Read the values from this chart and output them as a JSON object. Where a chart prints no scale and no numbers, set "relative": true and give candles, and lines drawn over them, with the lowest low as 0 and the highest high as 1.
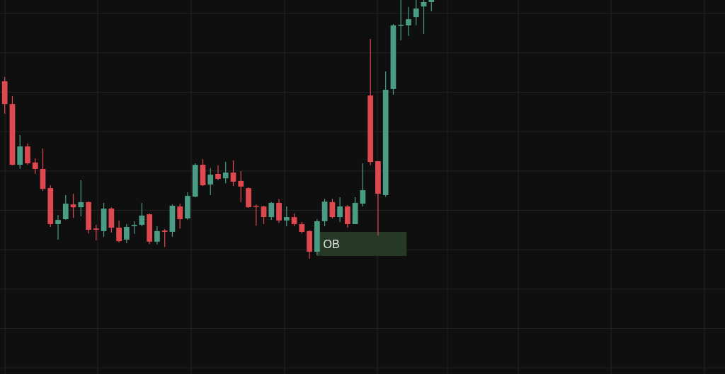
{
  "chart_data": {
    "type": "candlestick",
    "relative": true,
    "categories": [
      null,
      null,
      null,
      null,
      null,
      null,
      null,
      null,
      null,
      null,
      null,
      null,
      null,
      null,
      null,
      null,
      null,
      null,
      null,
      null,
      null,
      null,
      null,
      null,
      null,
      null,
      null,
      null,
      null,
      null,
      null,
      null,
      null,
      null,
      null,
      null,
      null,
      null,
      null,
      null,
      null,
      null,
      null,
      null,
      null,
      null,
      null,
      null,
      null,
      null,
      null,
      null,
      null,
      null,
      null,
      null,
      null
    ],
    "ohlc": [
      [
        0.686,
        0.702,
        0.56,
        0.598
      ],
      [
        0.598,
        0.628,
        0.361,
        0.363
      ],
      [
        0.363,
        0.478,
        0.347,
        0.434
      ],
      [
        0.434,
        0.445,
        0.363,
        0.369
      ],
      [
        0.372,
        0.388,
        0.328,
        0.347
      ],
      [
        0.347,
        0.426,
        0.262,
        0.27
      ],
      [
        0.273,
        0.284,
        0.123,
        0.134
      ],
      [
        0.134,
        0.169,
        0.074,
        0.15
      ],
      [
        0.153,
        0.246,
        0.15,
        0.213
      ],
      [
        0.21,
        0.251,
        0.158,
        0.199
      ],
      [
        0.199,
        0.303,
        0.164,
        0.219
      ],
      [
        0.219,
        0.221,
        0.098,
        0.112
      ],
      [
        0.117,
        0.131,
        0.071,
        0.112
      ],
      [
        0.107,
        0.216,
        0.085,
        0.194
      ],
      [
        0.194,
        0.199,
        0.101,
        0.12
      ],
      [
        0.12,
        0.148,
        0.063,
        0.068
      ],
      [
        0.074,
        0.134,
        0.06,
        0.123
      ],
      [
        0.126,
        0.145,
        0.096,
        0.131
      ],
      [
        0.131,
        0.216,
        0.126,
        0.167
      ],
      [
        0.172,
        0.175,
        0.057,
        0.066
      ],
      [
        0.066,
        0.126,
        0.055,
        0.107
      ],
      [
        0.109,
        0.115,
        0.046,
        0.104
      ],
      [
        0.104,
        0.21,
        0.085,
        0.205
      ],
      [
        0.202,
        0.213,
        0.117,
        0.153
      ],
      [
        0.156,
        0.257,
        0.15,
        0.243
      ],
      [
        0.24,
        0.369,
        0.238,
        0.363
      ],
      [
        0.363,
        0.385,
        0.281,
        0.284
      ],
      [
        0.287,
        0.35,
        0.246,
        0.325
      ],
      [
        0.328,
        0.361,
        0.303,
        0.309
      ],
      [
        0.311,
        0.374,
        0.292,
        0.333
      ],
      [
        0.333,
        0.38,
        0.281,
        0.298
      ],
      [
        0.301,
        0.339,
        0.219,
        0.279
      ],
      [
        0.273,
        0.276,
        0.197,
        0.199
      ],
      [
        0.205,
        0.21,
        0.128,
        0.202
      ],
      [
        0.202,
        0.205,
        0.134,
        0.161
      ],
      [
        0.161,
        0.219,
        0.15,
        0.216
      ],
      [
        0.216,
        0.23,
        0.139,
        0.148
      ],
      [
        0.148,
        0.202,
        0.126,
        0.161
      ],
      [
        0.161,
        0.175,
        0.126,
        0.134
      ],
      [
        0.134,
        0.142,
        0.098,
        0.104
      ],
      [
        0.107,
        0.109,
        0.0,
        0.027
      ],
      [
        0.027,
        0.153,
        0.014,
        0.145
      ],
      [
        0.145,
        0.232,
        0.126,
        0.221
      ],
      [
        0.219,
        0.232,
        0.156,
        0.161
      ],
      [
        0.161,
        0.238,
        0.142,
        0.202
      ],
      [
        0.202,
        0.208,
        0.12,
        0.134
      ],
      [
        0.134,
        0.238,
        0.134,
        0.216
      ],
      [
        0.213,
        0.369,
        0.202,
        0.265
      ],
      [
        0.631,
        0.85,
        0.361,
        0.374
      ],
      [
        0.377,
        0.377,
        0.09,
        0.251
      ],
      [
        0.246,
        0.724,
        0.24,
        0.653
      ],
      [
        0.656,
        0.907,
        0.634,
        0.902
      ],
      [
        0.902,
        1.0,
        0.844,
        0.904
      ],
      [
        0.902,
        0.973,
        0.861,
        0.926
      ],
      [
        0.934,
        1.0,
        0.902,
        0.967
      ],
      [
        0.975,
        1.0,
        0.869,
        0.992
      ],
      [
        0.992,
        1.0,
        0.956,
        1.0
      ]
    ],
    "colors": [
      "#e04850",
      "#e04850",
      "#4a9c85",
      "#e04850",
      "#e04850",
      "#e04850",
      "#e04850",
      "#4a9c85",
      "#4a9c85",
      "#e04850",
      "#4a9c85",
      "#e04850",
      "#e04850",
      "#4a9c85",
      "#e04850",
      "#e04850",
      "#4a9c85",
      "#4a9c85",
      "#4a9c85",
      "#e04850",
      "#4a9c85",
      "#e04850",
      "#4a9c85",
      "#e04850",
      "#4a9c85",
      "#4a9c85",
      "#e04850",
      "#4a9c85",
      "#e04850",
      "#4a9c85",
      "#e04850",
      "#e04850",
      "#e04850",
      "#e04850",
      "#e04850",
      "#4a9c85",
      "#e04850",
      "#4a9c85",
      "#e04850",
      "#e04850",
      "#e04850",
      "#4a9c85",
      "#4a9c85",
      "#e04850",
      "#4a9c85",
      "#e04850",
      "#4a9c85",
      "#4a9c85",
      "#e04850",
      "#e04850",
      "#4a9c85",
      "#4a9c85",
      "#4a9c85",
      "#4a9c85",
      "#4a9c85",
      "#4a9c85",
      "#4a9c85"
    ],
    "bands": [
      {
        "axis": "y",
        "from": 0.011,
        "to": 0.104,
        "label": "OB",
        "color": "#263826"
      }
    ],
    "grid": true
  }
}
